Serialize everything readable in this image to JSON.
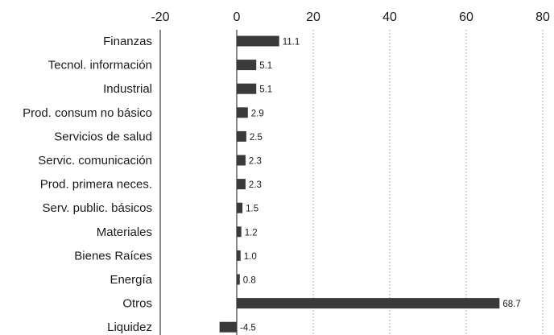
{
  "chart_data": {
    "type": "bar",
    "orientation": "horizontal",
    "categories": [
      "Finanzas",
      "Tecnol. información",
      "Industrial",
      "Prod. consum no básico",
      "Servicios de salud",
      "Servic. comunicación",
      "Prod. primera neces.",
      "Serv. public. básicos",
      "Materiales",
      "Bienes Raíces",
      "Energía",
      "Otros",
      "Liquidez"
    ],
    "values": [
      11.1,
      5.1,
      5.1,
      2.9,
      2.5,
      2.3,
      2.3,
      1.5,
      1.2,
      1.0,
      0.8,
      68.7,
      -4.5
    ],
    "value_labels": [
      "11.1",
      "5.1",
      "5.1",
      "2.9",
      "2.5",
      "2.3",
      "2.3",
      "1.5",
      "1.2",
      "1.0",
      "0.8",
      "68.7",
      "-4.5"
    ],
    "x_ticks": [
      -20,
      0,
      20,
      40,
      60,
      80
    ],
    "x_tick_labels": [
      "-20",
      "0",
      "20",
      "40",
      "60",
      "80"
    ],
    "xlim": [
      -20,
      80
    ],
    "axis_position": "top",
    "grid": "vertical dotted",
    "bar_color": "#3a3a3a",
    "grid_color": "#9a9a9a",
    "text_color": "#1a1a1a"
  }
}
